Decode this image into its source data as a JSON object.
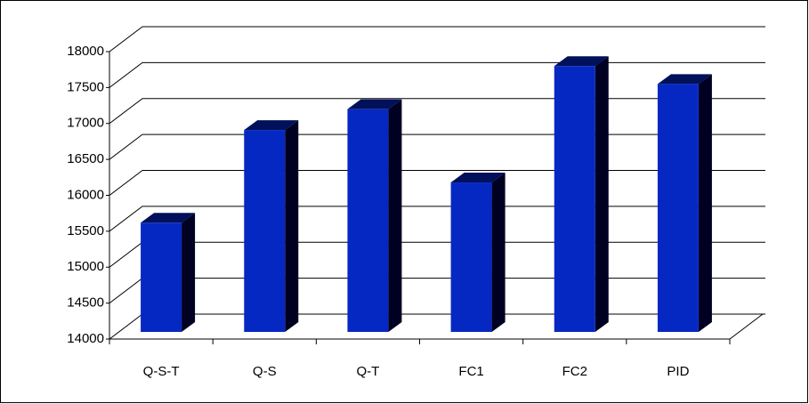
{
  "chart_data": {
    "type": "bar3d",
    "categories": [
      "Q-S-T",
      "Q-S",
      "Q-T",
      "FC1",
      "FC2",
      "PID"
    ],
    "values": [
      15520,
      16810,
      17100,
      16080,
      17700,
      17450
    ],
    "color": "#0628c2",
    "ylim": [
      14000,
      18000
    ],
    "yticks": [
      14000,
      14500,
      15000,
      15500,
      16000,
      16500,
      17000,
      17500,
      18000
    ],
    "grid": true
  }
}
